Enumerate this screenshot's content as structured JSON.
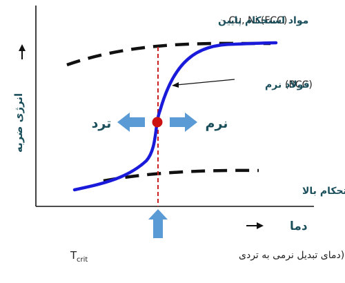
{
  "labels": {
    "top_fcc_fa": "مواد استحکام پایین",
    "top_fcc_en": "- Cu, Ni (FCC)",
    "bcc_fa": "فولاد نرم",
    "bcc_en": "(BCC)",
    "soft": "نرم",
    "brittle": "ترد",
    "high_strength": "مواد استحکام بالا",
    "y_axis": "انرژی ضربه",
    "x_axis": "دما",
    "tcrit_sub": "crit",
    "tcrit_desc": "(دمای تبدیل نرمی به تردی"
  },
  "colors": {
    "curve": "#1a1adb",
    "dashed_bounds": "#111111",
    "transition_line": "#cc1f1f",
    "point": "#cc1111",
    "arrows": "#5b9bd5",
    "label_text": "#1b4f5c"
  }
}
